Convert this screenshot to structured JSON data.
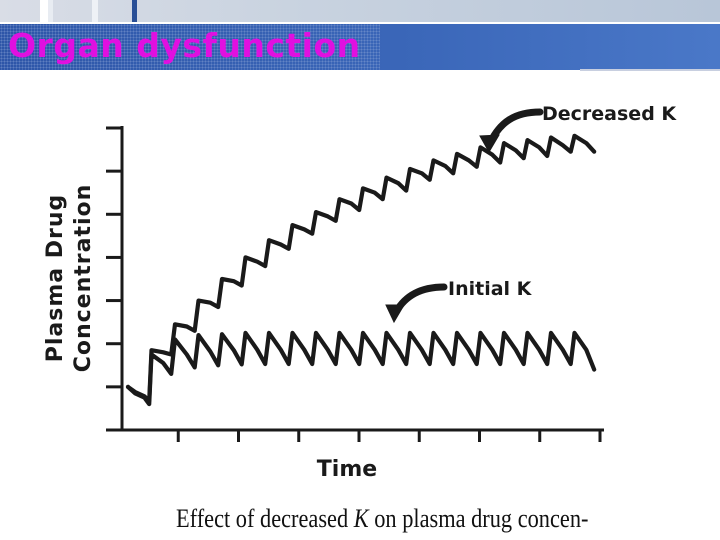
{
  "slide": {
    "title": "Organ dysfunction",
    "caption_before": "Effect of decreased ",
    "caption_italic": "K",
    "caption_after": " on plasma drug concen-"
  },
  "colors": {
    "title_text": "#e010e0",
    "title_bar": "#3a66b8",
    "ink": "#1a1a1a"
  },
  "chart_data": {
    "type": "line",
    "title": "",
    "xlabel": "Time",
    "ylabel": "Plasma Drug\nConcentration",
    "xlim": [
      0,
      10
    ],
    "ylim": [
      0,
      7
    ],
    "grid": false,
    "annotations": [
      {
        "text": "Decreased K",
        "series": "Decreased K"
      },
      {
        "text": "Initial K",
        "series": "Initial K"
      }
    ],
    "series": [
      {
        "name": "Initial K",
        "points": [
          [
            0.0,
            1.0
          ],
          [
            0.15,
            0.85
          ],
          [
            0.35,
            0.75
          ],
          [
            0.45,
            0.6
          ],
          [
            0.5,
            1.75
          ],
          [
            0.75,
            1.55
          ],
          [
            0.92,
            1.3
          ],
          [
            1.0,
            2.1
          ],
          [
            1.25,
            1.75
          ],
          [
            1.42,
            1.45
          ],
          [
            1.5,
            2.2
          ],
          [
            1.75,
            1.82
          ],
          [
            1.92,
            1.5
          ],
          [
            2.0,
            2.22
          ],
          [
            2.25,
            1.85
          ],
          [
            2.42,
            1.52
          ],
          [
            2.5,
            2.25
          ],
          [
            2.75,
            1.86
          ],
          [
            2.92,
            1.53
          ],
          [
            3.0,
            2.25
          ],
          [
            3.25,
            1.86
          ],
          [
            3.42,
            1.53
          ],
          [
            3.5,
            2.25
          ],
          [
            3.75,
            1.86
          ],
          [
            3.92,
            1.53
          ],
          [
            4.0,
            2.25
          ],
          [
            4.25,
            1.86
          ],
          [
            4.42,
            1.53
          ],
          [
            4.5,
            2.25
          ],
          [
            4.75,
            1.86
          ],
          [
            4.92,
            1.53
          ],
          [
            5.0,
            2.25
          ],
          [
            5.25,
            1.86
          ],
          [
            5.42,
            1.53
          ],
          [
            5.5,
            2.25
          ],
          [
            5.75,
            1.86
          ],
          [
            5.92,
            1.53
          ],
          [
            6.0,
            2.25
          ],
          [
            6.25,
            1.86
          ],
          [
            6.42,
            1.53
          ],
          [
            6.5,
            2.25
          ],
          [
            6.75,
            1.86
          ],
          [
            6.92,
            1.53
          ],
          [
            7.0,
            2.25
          ],
          [
            7.25,
            1.86
          ],
          [
            7.42,
            1.53
          ],
          [
            7.5,
            2.25
          ],
          [
            7.75,
            1.86
          ],
          [
            7.92,
            1.53
          ],
          [
            8.0,
            2.25
          ],
          [
            8.25,
            1.86
          ],
          [
            8.42,
            1.53
          ],
          [
            8.5,
            2.25
          ],
          [
            8.75,
            1.86
          ],
          [
            8.92,
            1.53
          ],
          [
            9.0,
            2.25
          ],
          [
            9.25,
            1.86
          ],
          [
            9.42,
            1.53
          ],
          [
            9.5,
            2.25
          ],
          [
            9.75,
            1.86
          ],
          [
            9.92,
            1.4
          ]
        ]
      },
      {
        "name": "Decreased K",
        "points": [
          [
            0.0,
            1.0
          ],
          [
            0.15,
            0.88
          ],
          [
            0.35,
            0.78
          ],
          [
            0.45,
            0.68
          ],
          [
            0.5,
            1.85
          ],
          [
            0.75,
            1.8
          ],
          [
            0.92,
            1.75
          ],
          [
            1.0,
            2.45
          ],
          [
            1.25,
            2.4
          ],
          [
            1.42,
            2.3
          ],
          [
            1.5,
            3.0
          ],
          [
            1.75,
            2.95
          ],
          [
            1.92,
            2.85
          ],
          [
            2.0,
            3.5
          ],
          [
            2.25,
            3.45
          ],
          [
            2.42,
            3.35
          ],
          [
            2.5,
            4.0
          ],
          [
            2.75,
            3.9
          ],
          [
            2.92,
            3.8
          ],
          [
            3.0,
            4.4
          ],
          [
            3.25,
            4.3
          ],
          [
            3.42,
            4.2
          ],
          [
            3.5,
            4.75
          ],
          [
            3.75,
            4.65
          ],
          [
            3.92,
            4.55
          ],
          [
            4.0,
            5.05
          ],
          [
            4.25,
            4.95
          ],
          [
            4.42,
            4.85
          ],
          [
            4.5,
            5.35
          ],
          [
            4.75,
            5.25
          ],
          [
            4.92,
            5.1
          ],
          [
            5.0,
            5.6
          ],
          [
            5.25,
            5.5
          ],
          [
            5.42,
            5.35
          ],
          [
            5.5,
            5.85
          ],
          [
            5.75,
            5.72
          ],
          [
            5.92,
            5.55
          ],
          [
            6.0,
            6.05
          ],
          [
            6.25,
            5.95
          ],
          [
            6.42,
            5.8
          ],
          [
            6.5,
            6.25
          ],
          [
            6.75,
            6.12
          ],
          [
            6.92,
            5.95
          ],
          [
            7.0,
            6.4
          ],
          [
            7.25,
            6.25
          ],
          [
            7.42,
            6.1
          ],
          [
            7.5,
            6.55
          ],
          [
            7.75,
            6.38
          ],
          [
            7.92,
            6.2
          ],
          [
            8.0,
            6.65
          ],
          [
            8.25,
            6.48
          ],
          [
            8.42,
            6.3
          ],
          [
            8.5,
            6.72
          ],
          [
            8.75,
            6.55
          ],
          [
            8.92,
            6.35
          ],
          [
            9.0,
            6.78
          ],
          [
            9.25,
            6.6
          ],
          [
            9.42,
            6.45
          ],
          [
            9.5,
            6.82
          ],
          [
            9.75,
            6.65
          ],
          [
            9.92,
            6.45
          ]
        ]
      }
    ]
  }
}
